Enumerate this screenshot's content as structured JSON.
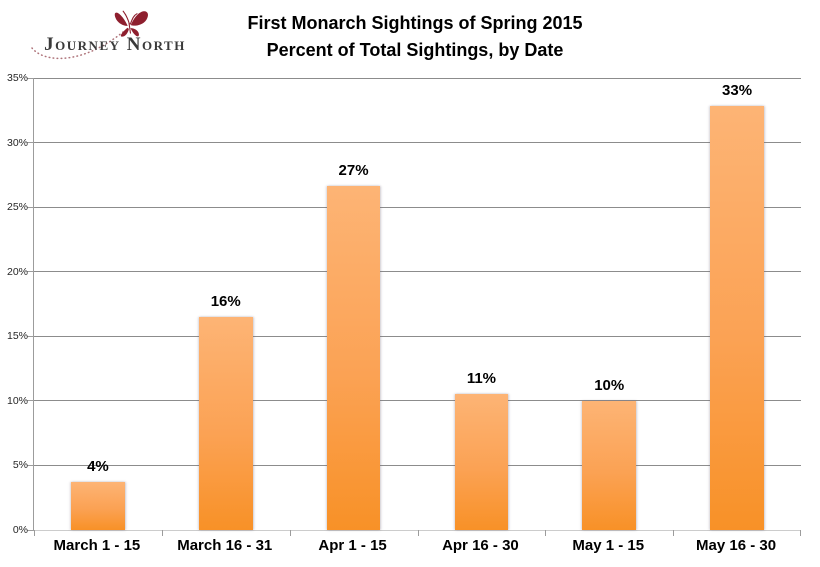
{
  "logo": {
    "text": "Journey North",
    "butterfly_icon": "butterfly-icon",
    "text_color": "#3a3a3a",
    "butterfly_color": "#8e1f2e",
    "swoosh_color": "#a05a63"
  },
  "title": {
    "line1": "First Monarch Sightings of Spring 2015",
    "line2": "Percent of Total Sightings, by Date"
  },
  "chart_data": {
    "type": "bar",
    "title": "First Monarch Sightings of Spring 2015",
    "subtitle": "Percent of Total Sightings, by Date",
    "categories": [
      "March 1 - 15",
      "March 16 - 31",
      "Apr 1 - 15",
      "Apr 16 - 30",
      "May 1 - 15",
      "May 16 - 30"
    ],
    "values": [
      3.7,
      16.5,
      26.6,
      10.5,
      10.0,
      32.8
    ],
    "labels": [
      "4%",
      "16%",
      "27%",
      "11%",
      "10%",
      "33%"
    ],
    "xlabel": "",
    "ylabel": "",
    "ylim": [
      0,
      35
    ],
    "yticks": [
      0,
      5,
      10,
      15,
      20,
      25,
      30,
      35
    ],
    "ytick_labels": [
      "0%",
      "5%",
      "10%",
      "15%",
      "20%",
      "25%",
      "30%",
      "35%"
    ],
    "grid": true,
    "legend": false,
    "bar_gradient": {
      "top": "#FDB475",
      "mid": "#FBA254",
      "bottom": "#F89127"
    },
    "gridline_color": "#8c8c8c",
    "axis_color": "#9c9c9c",
    "label_color": "#000000"
  }
}
